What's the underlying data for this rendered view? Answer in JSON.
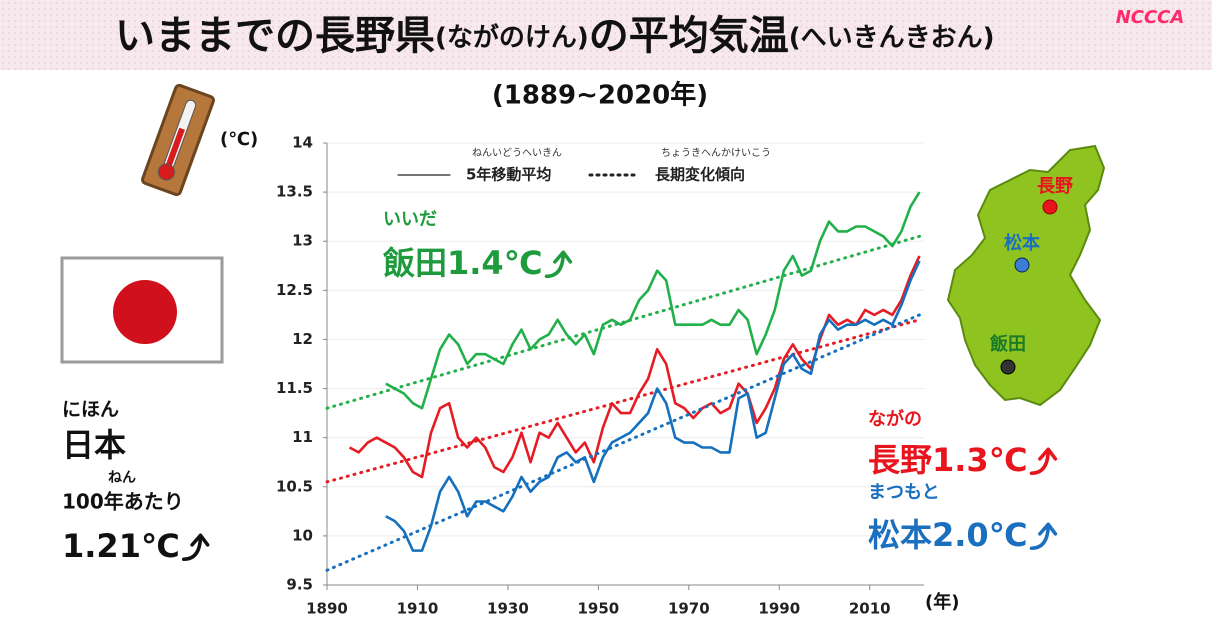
{
  "chart_data": {
    "type": "line",
    "title_parts": [
      "いままでの長野県",
      "(ながのけん)",
      "の平均気温",
      "(へいきんきおん)"
    ],
    "subtitle": "(1889~2020年)",
    "logo": "NCCCA",
    "y_unit": "(℃)",
    "x_unit": "(年)",
    "legend": [
      {
        "ruby": "ねんいどうへいきん",
        "label": "5年移動平均",
        "style": "solid"
      },
      {
        "ruby": "ちょうきへんかけいこう",
        "label": "長期変化傾向",
        "style": "dotted"
      }
    ],
    "xlim": [
      1890,
      2022
    ],
    "xticks": [
      1890,
      1910,
      1930,
      1950,
      1970,
      1990,
      2010
    ],
    "ylim": [
      9.5,
      14
    ],
    "yticks": [
      9.5,
      10,
      10.5,
      11,
      11.5,
      12,
      12.5,
      13,
      13.5,
      14
    ],
    "grid": true,
    "x": [
      1895,
      1897,
      1899,
      1901,
      1903,
      1905,
      1907,
      1909,
      1911,
      1913,
      1915,
      1917,
      1919,
      1921,
      1923,
      1925,
      1927,
      1929,
      1931,
      1933,
      1935,
      1937,
      1939,
      1941,
      1943,
      1945,
      1947,
      1949,
      1951,
      1953,
      1955,
      1957,
      1959,
      1961,
      1963,
      1965,
      1967,
      1969,
      1971,
      1973,
      1975,
      1977,
      1979,
      1981,
      1983,
      1985,
      1987,
      1989,
      1991,
      1993,
      1995,
      1997,
      1999,
      2001,
      2003,
      2005,
      2007,
      2009,
      2011,
      2013,
      2015,
      2017,
      2019,
      2021
    ],
    "trend_x": [
      1890,
      2021
    ],
    "series": [
      {
        "color": "#22b04a",
        "trend": [
          11.3,
          13.05
        ],
        "values": [
          null,
          null,
          null,
          null,
          11.55,
          11.5,
          11.45,
          11.35,
          11.3,
          11.6,
          11.9,
          12.05,
          11.95,
          11.75,
          11.85,
          11.85,
          11.8,
          11.75,
          11.95,
          12.1,
          11.9,
          12.0,
          12.05,
          12.2,
          12.05,
          11.95,
          12.05,
          11.85,
          12.15,
          12.2,
          12.15,
          12.2,
          12.4,
          12.5,
          12.7,
          12.6,
          12.15,
          12.15,
          12.15,
          12.15,
          12.2,
          12.15,
          12.15,
          12.3,
          12.2,
          11.85,
          12.05,
          12.3,
          12.7,
          12.85,
          12.65,
          12.7,
          13.0,
          13.2,
          13.1,
          13.1,
          13.15,
          13.15,
          13.1,
          13.05,
          12.95,
          13.1,
          13.35,
          13.5
        ]
      },
      {
        "color": "#e51c23",
        "trend": [
          10.55,
          12.2
        ],
        "values": [
          10.9,
          10.85,
          10.95,
          11.0,
          10.95,
          10.9,
          10.8,
          10.65,
          10.6,
          11.05,
          11.3,
          11.35,
          11.0,
          10.9,
          11.0,
          10.9,
          10.7,
          10.65,
          10.8,
          11.05,
          10.75,
          11.05,
          11.0,
          11.15,
          11.0,
          10.85,
          10.95,
          10.75,
          11.1,
          11.35,
          11.25,
          11.25,
          11.45,
          11.6,
          11.9,
          11.75,
          11.35,
          11.3,
          11.2,
          11.3,
          11.35,
          11.25,
          11.3,
          11.55,
          11.45,
          11.15,
          11.3,
          11.5,
          11.8,
          11.95,
          11.8,
          11.7,
          12.0,
          12.25,
          12.15,
          12.2,
          12.15,
          12.3,
          12.25,
          12.3,
          12.25,
          12.4,
          12.65,
          12.85
        ]
      },
      {
        "color": "#1570be",
        "trend": [
          9.65,
          12.25
        ],
        "values": [
          null,
          null,
          null,
          null,
          10.2,
          10.15,
          10.05,
          9.85,
          9.85,
          10.1,
          10.45,
          10.6,
          10.45,
          10.2,
          10.35,
          10.35,
          10.3,
          10.25,
          10.4,
          10.6,
          10.45,
          10.55,
          10.6,
          10.8,
          10.85,
          10.75,
          10.8,
          10.55,
          10.8,
          10.95,
          11.0,
          11.05,
          11.15,
          11.25,
          11.5,
          11.35,
          11.0,
          10.95,
          10.95,
          10.9,
          10.9,
          10.85,
          10.85,
          11.4,
          11.45,
          11.0,
          11.05,
          11.4,
          11.75,
          11.85,
          11.7,
          11.65,
          12.05,
          12.2,
          12.1,
          12.15,
          12.15,
          12.2,
          12.15,
          12.2,
          12.15,
          12.35,
          12.6,
          12.8
        ]
      }
    ],
    "annotations": [
      {
        "ruby": "いいだ",
        "label": "飯田1.4℃",
        "color": "#1e9b3c"
      },
      {
        "ruby": "ながの",
        "label": "長野1.3℃",
        "color": "#e8141e"
      },
      {
        "ruby": "まつもと",
        "label": "松本2.0℃",
        "color": "#1a6fbf"
      }
    ],
    "japan": {
      "ruby": "にほん",
      "name": "日本",
      "ruby2": "ねん",
      "per": "100年あたり",
      "value_label": "1.21℃"
    },
    "map_labels": [
      "長野",
      "松本",
      "飯田"
    ]
  }
}
